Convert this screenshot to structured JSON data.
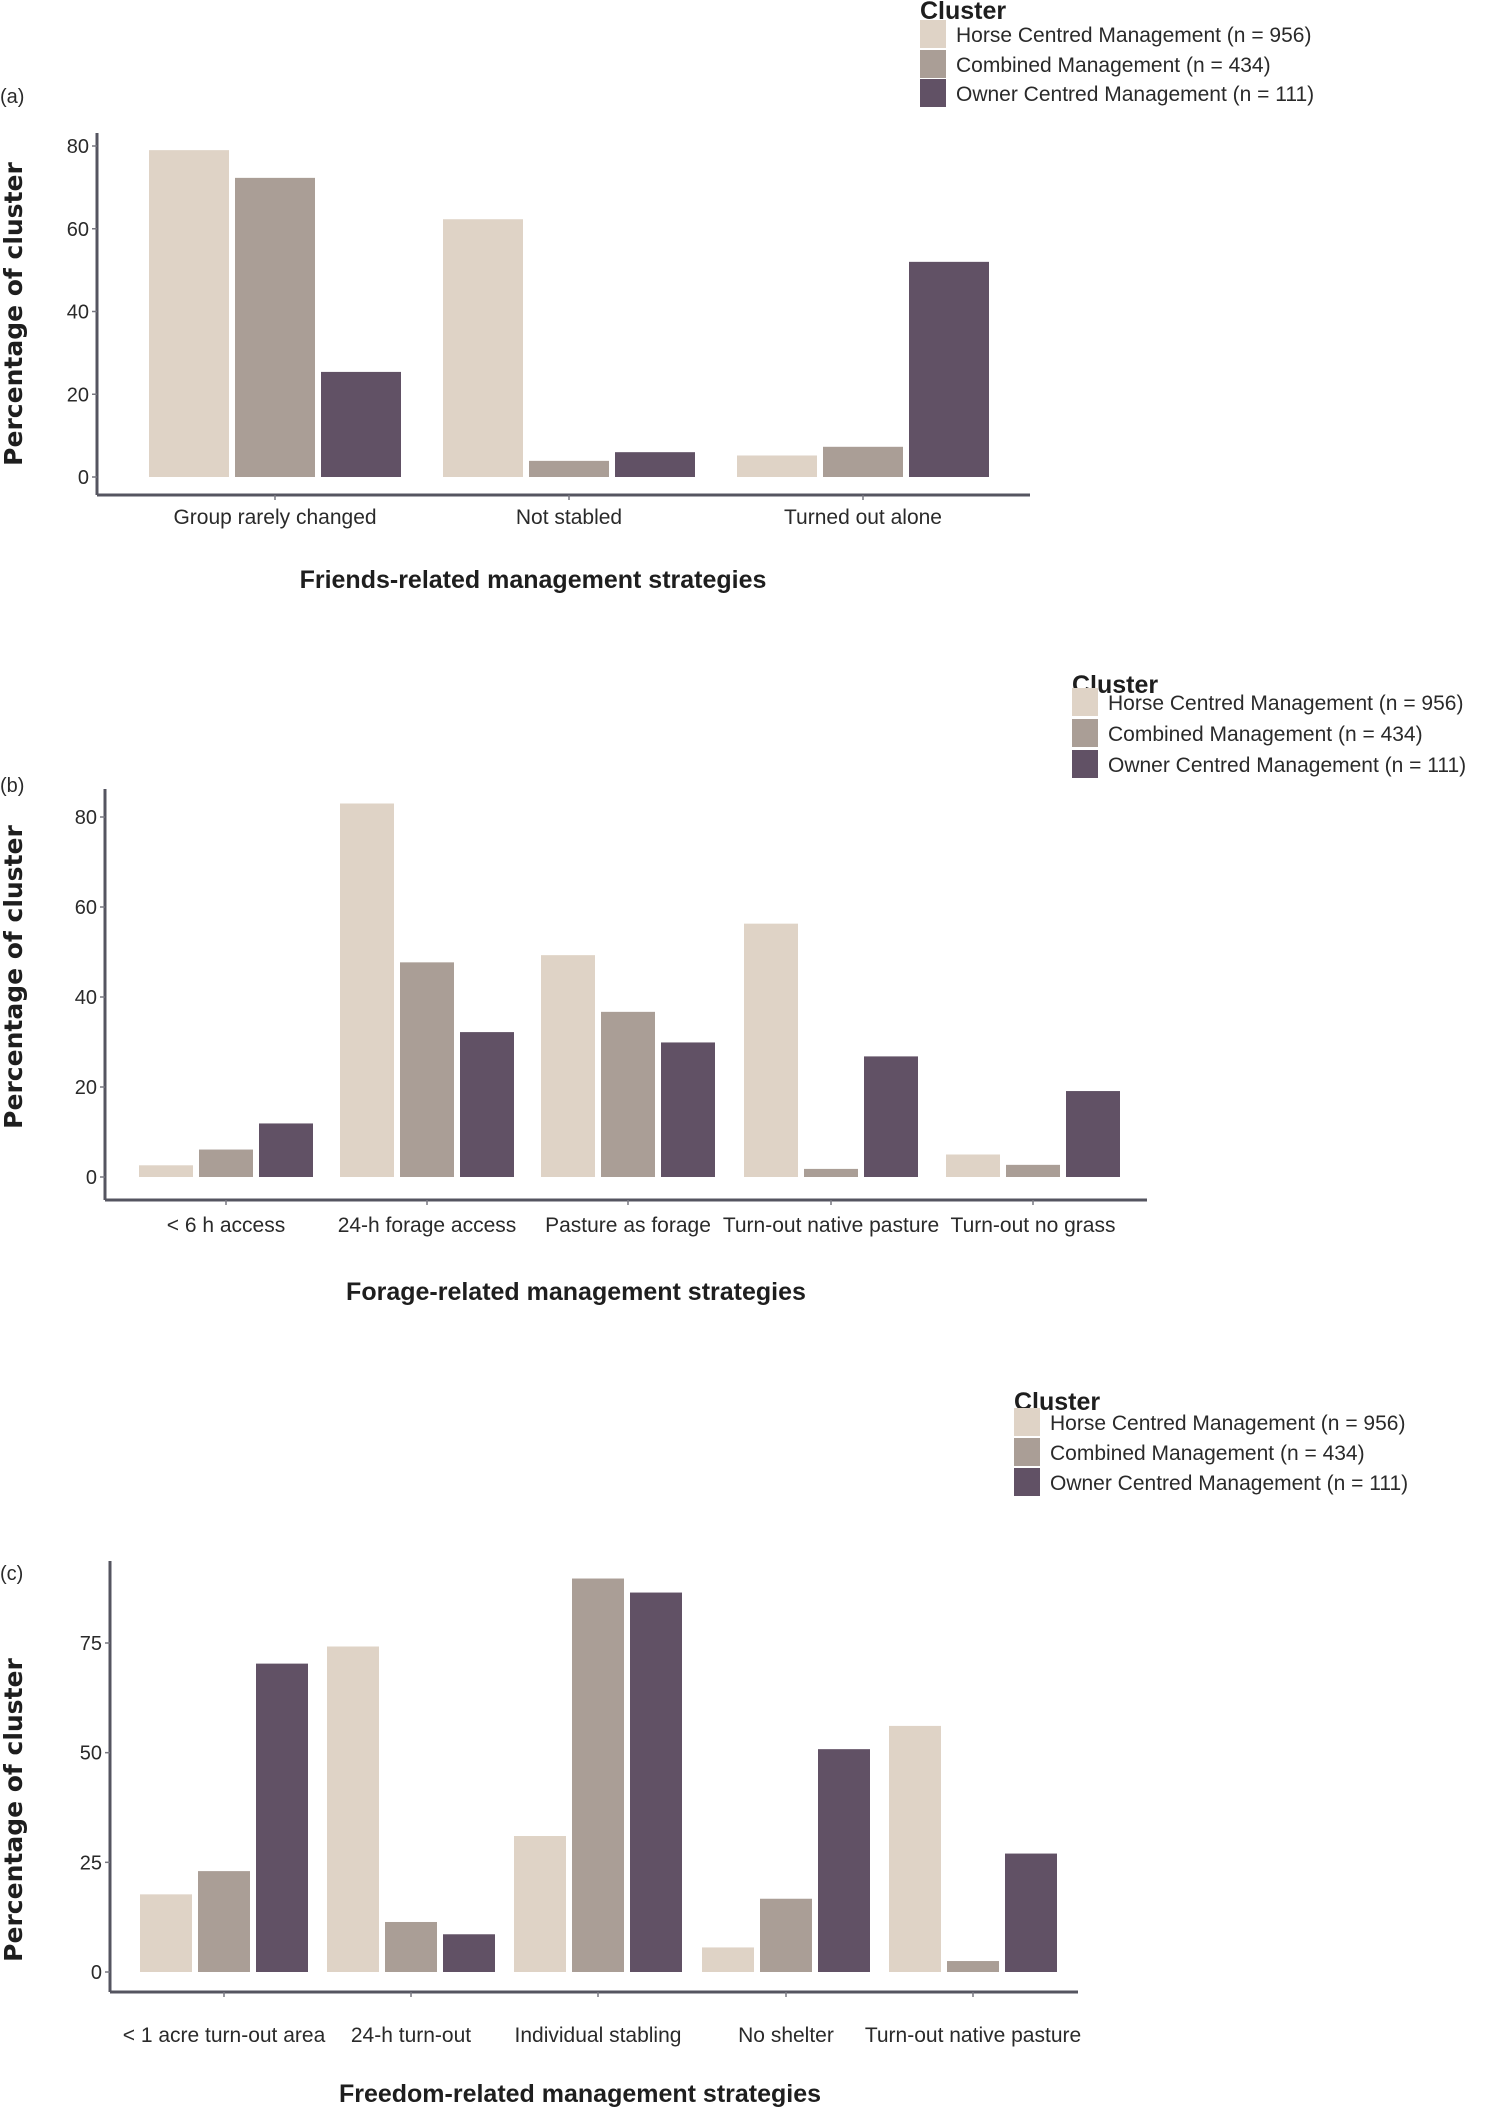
{
  "figure": {
    "series_colors": {
      "Horse Centred Management (n = 956)": "#dfd3c6",
      "Combined Management (n = 434)": "#aa9e96",
      "Owner Centred Management (n = 111)": "#615165"
    }
  },
  "chart_data": [
    {
      "panel_label": "(a)",
      "type": "bar",
      "title": "",
      "xlabel": "Friends-related management strategies",
      "ylabel": "Percentage of cluster",
      "ylim": [
        0,
        80
      ],
      "yticks": [
        0,
        20,
        40,
        60,
        80
      ],
      "grid": false,
      "legend": {
        "title": "Cluster",
        "placement": "top-right"
      },
      "categories": [
        "Group rarely changed",
        "Not stabled",
        "Turned out alone"
      ],
      "series": [
        {
          "name": "Horse Centred Management (n = 956)",
          "color": "#dfd3c6",
          "values": [
            79.0,
            62.3,
            5.2
          ]
        },
        {
          "name": "Combined Management (n = 434)",
          "color": "#aa9e96",
          "values": [
            72.3,
            3.9,
            7.3
          ]
        },
        {
          "name": "Owner Centred Management (n = 111)",
          "color": "#615165",
          "values": [
            25.4,
            6.0,
            52.0
          ]
        }
      ]
    },
    {
      "panel_label": "(b)",
      "type": "bar",
      "title": "",
      "xlabel": "Forage-related management strategies",
      "ylabel": "Percentage of cluster",
      "ylim": [
        0,
        80
      ],
      "yticks": [
        0,
        20,
        40,
        60,
        80
      ],
      "grid": false,
      "legend": {
        "title": "Cluster",
        "placement": "top-right"
      },
      "categories": [
        "< 6 h access",
        "24-h forage access",
        "Pasture as forage",
        "Turn-out native pasture",
        "Turn-out no grass"
      ],
      "series": [
        {
          "name": "Horse Centred Management (n = 956)",
          "color": "#dfd3c6",
          "values": [
            2.6,
            83.0,
            49.3,
            56.3,
            5.0
          ]
        },
        {
          "name": "Combined Management (n = 434)",
          "color": "#aa9e96",
          "values": [
            6.1,
            47.7,
            36.7,
            1.8,
            2.7
          ]
        },
        {
          "name": "Owner Centred Management (n = 111)",
          "color": "#615165",
          "values": [
            11.9,
            32.2,
            29.9,
            26.8,
            19.1
          ]
        }
      ]
    },
    {
      "panel_label": "(c)",
      "type": "bar",
      "title": "",
      "xlabel": "Freedom-related management strategies",
      "ylabel": "Percentage of cluster",
      "ylim": [
        0,
        75
      ],
      "yticks": [
        0,
        25,
        50,
        75
      ],
      "grid": false,
      "legend": {
        "title": "Cluster",
        "placement": "top-right"
      },
      "categories": [
        "< 1 acre turn-out area",
        "24-h turn-out",
        "Individual stabling",
        "No shelter",
        "Turn-out native pasture"
      ],
      "series": [
        {
          "name": "Horse Centred Management (n = 956)",
          "color": "#dfd3c6",
          "values": [
            17.7,
            74.2,
            31.0,
            5.6,
            56.1
          ]
        },
        {
          "name": "Combined Management (n = 434)",
          "color": "#aa9e96",
          "values": [
            23.0,
            11.4,
            89.7,
            16.7,
            2.5
          ]
        },
        {
          "name": "Owner Centred Management (n = 111)",
          "color": "#615165",
          "values": [
            70.3,
            8.6,
            86.5,
            50.8,
            27.0
          ]
        }
      ]
    }
  ]
}
